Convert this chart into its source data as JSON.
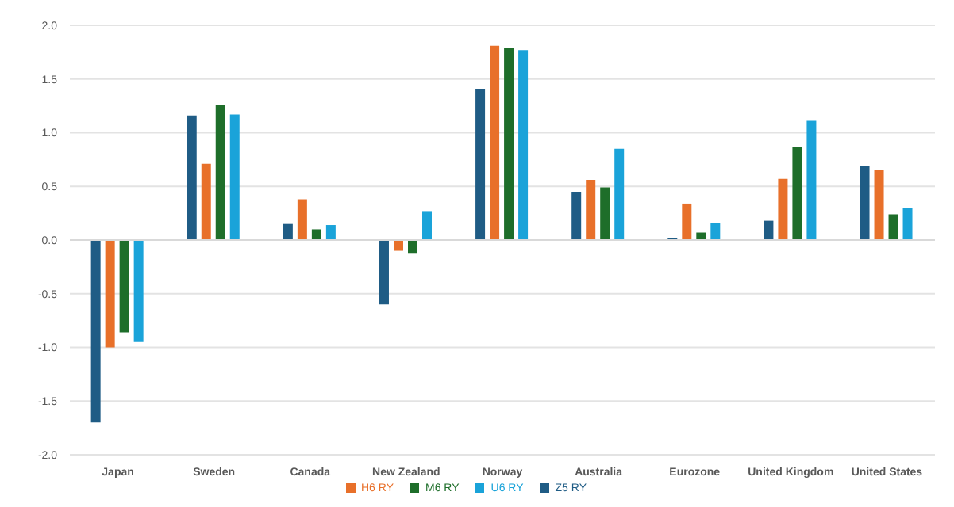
{
  "chart_data": {
    "type": "bar",
    "categories": [
      "Japan",
      "Sweden",
      "Canada",
      "New Zealand",
      "Norway",
      "Australia",
      "Eurozone",
      "United Kingdom",
      "United States"
    ],
    "series": [
      {
        "name": "Z5 RY",
        "color": "#1f5c85",
        "values": [
          -1.7,
          1.16,
          0.15,
          -0.6,
          1.41,
          0.45,
          0.02,
          0.18,
          0.69
        ]
      },
      {
        "name": "H6 RY",
        "color": "#e8702a",
        "values": [
          -1.0,
          0.71,
          0.38,
          -0.1,
          1.81,
          0.56,
          0.34,
          0.57,
          0.65
        ]
      },
      {
        "name": "M6 RY",
        "color": "#1e6e2a",
        "values": [
          -0.86,
          1.26,
          0.1,
          -0.12,
          1.79,
          0.49,
          0.07,
          0.87,
          0.24
        ]
      },
      {
        "name": "U6 RY",
        "color": "#1aa3d9",
        "values": [
          -0.95,
          1.17,
          0.14,
          0.27,
          1.77,
          0.85,
          0.16,
          1.11,
          0.3
        ]
      }
    ],
    "ylim": [
      -2,
      2
    ],
    "yticks": [
      {
        "value": -2,
        "label": "-2.0"
      },
      {
        "value": -1.5,
        "label": "-1.5"
      },
      {
        "value": -1,
        "label": "-1.0"
      },
      {
        "value": -0.5,
        "label": "-0.5"
      },
      {
        "value": 0,
        "label": "0.0"
      },
      {
        "value": 0.5,
        "label": "0.5"
      },
      {
        "value": 1,
        "label": "1.0"
      },
      {
        "value": 1.5,
        "label": "1.5"
      },
      {
        "value": 2,
        "label": "2.0"
      }
    ],
    "grid": "y",
    "legend": "bottom"
  }
}
